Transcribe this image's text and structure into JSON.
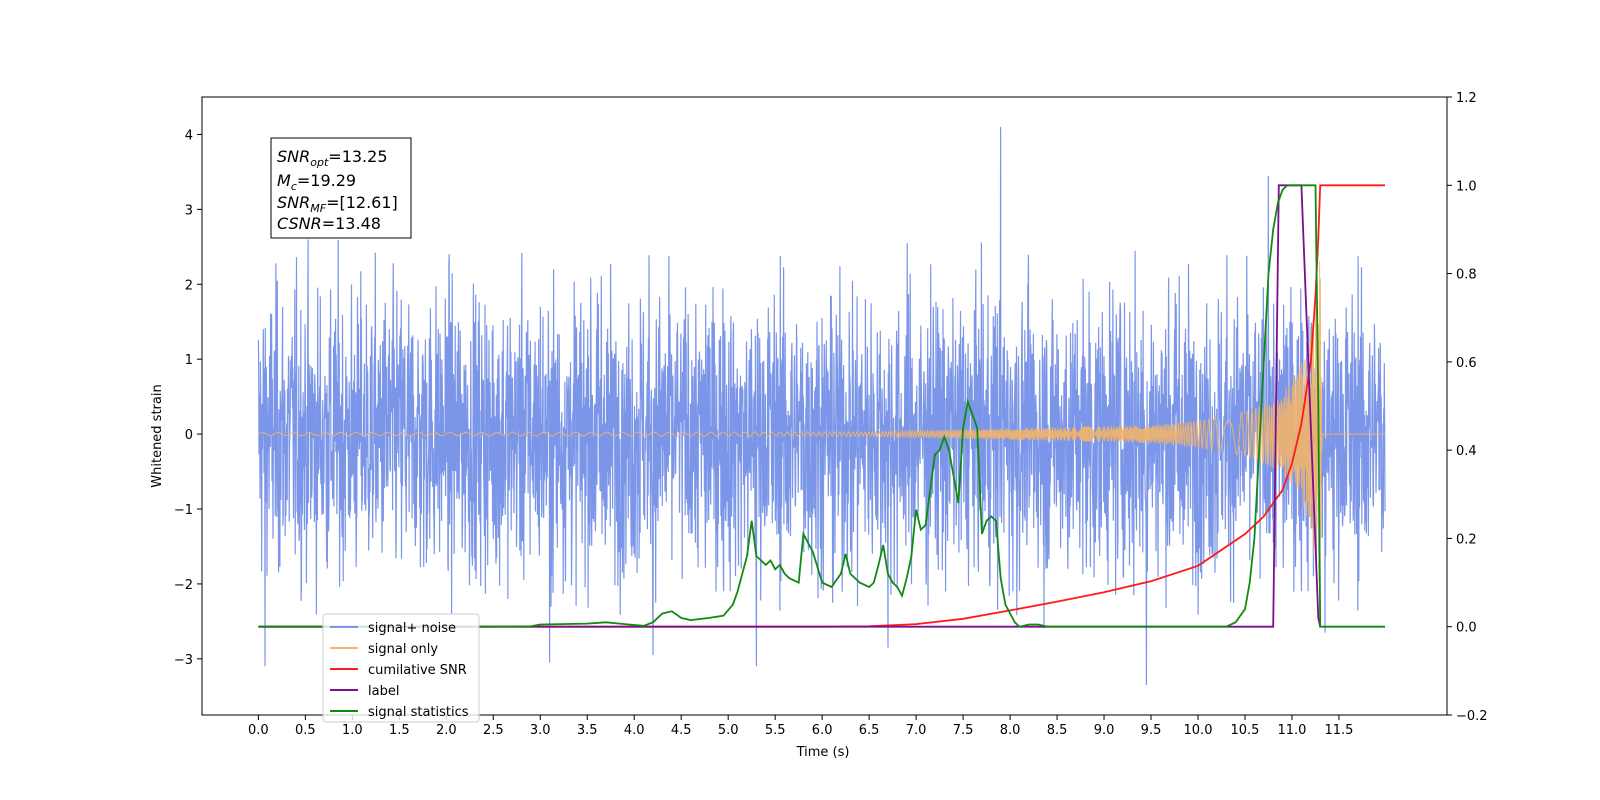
{
  "chart_data": {
    "type": "line",
    "xlabel": "Time (s)",
    "ylabel_left": "Whitened strain",
    "ylabel_right": "",
    "xlim": [
      -0.6,
      12.65
    ],
    "ylim_left": [
      -3.75,
      4.5
    ],
    "ylim_right": [
      -0.2,
      1.2
    ],
    "x_ticks": [
      "0.0",
      "0.5",
      "1.0",
      "1.5",
      "2.0",
      "2.5",
      "3.0",
      "3.5",
      "4.0",
      "4.5",
      "5.0",
      "5.5",
      "6.0",
      "6.5",
      "7.0",
      "7.5",
      "8.0",
      "8.5",
      "9.0",
      "9.5",
      "10.0",
      "10.5",
      "11.0",
      "11.5"
    ],
    "x_tick_values": [
      0,
      0.5,
      1,
      1.5,
      2,
      2.5,
      3,
      3.5,
      4,
      4.5,
      5,
      5.5,
      6,
      6.5,
      7,
      7.5,
      8,
      8.5,
      9,
      9.5,
      10,
      10.5,
      11,
      11.5
    ],
    "y_left_ticks": [
      "−3",
      "−2",
      "−1",
      "0",
      "1",
      "2",
      "3",
      "4"
    ],
    "y_left_tick_values": [
      -3,
      -2,
      -1,
      0,
      1,
      2,
      3,
      4
    ],
    "y_right_ticks": [
      "−0.2",
      "0.0",
      "0.2",
      "0.4",
      "0.6",
      "0.8",
      "1.0",
      "1.2"
    ],
    "y_right_tick_values": [
      -0.2,
      0,
      0.2,
      0.4,
      0.6,
      0.8,
      1.0,
      1.2
    ],
    "grid": false,
    "legend_placement": "lower-left",
    "stats_box": {
      "snr_opt": {
        "symbol": "SNR",
        "sub": "opt",
        "value": "=13.25"
      },
      "mc": {
        "symbol": "M",
        "sub": "c",
        "value": "=19.29"
      },
      "snr_mf": {
        "symbol": "SNR",
        "sub": "MF",
        "value": "=[12.61]"
      },
      "csnr": {
        "symbol": "CSNR",
        "sub": "",
        "value": "=13.48"
      }
    },
    "series": [
      {
        "name": "signal+ noise",
        "axis": "left",
        "color": "#7b96e8",
        "description_values": "noise with std about 1, range -3.35 to 4.1",
        "x_range": [
          0,
          11.99
        ],
        "noise_sigma": 0.95,
        "spikes": [
          [
            0.07,
            -3.1
          ],
          [
            3.1,
            -3.05
          ],
          [
            4.2,
            -2.95
          ],
          [
            5.3,
            -3.1
          ],
          [
            9.45,
            -3.35
          ],
          [
            7.9,
            4.1
          ],
          [
            10.75,
            3.45
          ],
          [
            6.7,
            -2.85
          ],
          [
            11.35,
            -2.65
          ]
        ]
      },
      {
        "name": "signal only",
        "axis": "left",
        "color": "#f2b46a",
        "description_values": "chirp envelope growing toward merger at 11.3 s",
        "x_range": [
          0,
          11.99
        ],
        "envelope_points": [
          [
            0,
            0.02
          ],
          [
            6.5,
            0.03
          ],
          [
            7.5,
            0.06
          ],
          [
            8.5,
            0.09
          ],
          [
            9.5,
            0.12
          ],
          [
            10.0,
            0.18
          ],
          [
            10.5,
            0.3
          ],
          [
            10.8,
            0.45
          ],
          [
            11.0,
            0.7
          ],
          [
            11.15,
            1.1
          ],
          [
            11.25,
            1.8
          ],
          [
            11.3,
            2.5
          ],
          [
            11.32,
            0.0
          ],
          [
            11.99,
            0.0
          ]
        ]
      },
      {
        "name": "cumilative SNR",
        "axis": "right",
        "color": "#ff1a1a",
        "x": [
          0,
          6.0,
          6.5,
          7.0,
          7.5,
          8.0,
          8.5,
          9.0,
          9.5,
          10.0,
          10.5,
          10.7,
          10.9,
          11.0,
          11.1,
          11.2,
          11.25,
          11.28,
          11.3,
          11.99
        ],
        "y": [
          0,
          0.0,
          0.001,
          0.006,
          0.018,
          0.037,
          0.057,
          0.078,
          0.103,
          0.138,
          0.21,
          0.25,
          0.31,
          0.37,
          0.46,
          0.6,
          0.75,
          0.88,
          1.0,
          1.0
        ]
      },
      {
        "name": "label",
        "axis": "right",
        "color": "#7a0f8a",
        "x": [
          0,
          10.8,
          10.86,
          11.1,
          11.28,
          11.3
        ],
        "y": [
          0,
          0,
          1.0,
          1.0,
          0.02,
          0
        ]
      },
      {
        "name": "signal statistics",
        "axis": "right",
        "color": "#118a11",
        "x": [
          0,
          2.5,
          2.9,
          3.0,
          3.5,
          3.7,
          3.9,
          4.1,
          4.2,
          4.3,
          4.4,
          4.5,
          4.6,
          4.8,
          4.95,
          5.05,
          5.1,
          5.2,
          5.25,
          5.3,
          5.4,
          5.45,
          5.5,
          5.55,
          5.6,
          5.65,
          5.7,
          5.75,
          5.8,
          5.9,
          6.0,
          6.1,
          6.2,
          6.25,
          6.3,
          6.4,
          6.5,
          6.55,
          6.6,
          6.65,
          6.7,
          6.75,
          6.8,
          6.85,
          6.9,
          6.95,
          7.0,
          7.05,
          7.1,
          7.15,
          7.2,
          7.25,
          7.3,
          7.35,
          7.4,
          7.45,
          7.5,
          7.55,
          7.6,
          7.65,
          7.7,
          7.75,
          7.8,
          7.85,
          7.9,
          7.95,
          8.0,
          8.05,
          8.1,
          8.2,
          8.3,
          8.4,
          8.5,
          10.3,
          10.4,
          10.5,
          10.55,
          10.6,
          10.65,
          10.7,
          10.75,
          10.8,
          10.85,
          10.9,
          10.95,
          11.0,
          11.1,
          11.2,
          11.25,
          11.28,
          11.3,
          11.5,
          11.99
        ],
        "y": [
          0,
          0,
          0.001,
          0.005,
          0.007,
          0.01,
          0.006,
          0.002,
          0.01,
          0.03,
          0.035,
          0.02,
          0.015,
          0.02,
          0.025,
          0.05,
          0.08,
          0.16,
          0.24,
          0.16,
          0.14,
          0.15,
          0.13,
          0.14,
          0.12,
          0.11,
          0.105,
          0.1,
          0.21,
          0.17,
          0.1,
          0.09,
          0.12,
          0.165,
          0.12,
          0.1,
          0.09,
          0.1,
          0.14,
          0.185,
          0.12,
          0.1,
          0.09,
          0.07,
          0.11,
          0.16,
          0.265,
          0.22,
          0.23,
          0.31,
          0.39,
          0.4,
          0.43,
          0.4,
          0.34,
          0.28,
          0.45,
          0.51,
          0.48,
          0.45,
          0.21,
          0.24,
          0.25,
          0.24,
          0.11,
          0.05,
          0.03,
          0.01,
          0.0,
          0.005,
          0.005,
          0.0,
          0.0,
          0.0,
          0.01,
          0.04,
          0.1,
          0.2,
          0.4,
          0.6,
          0.8,
          0.9,
          0.96,
          0.99,
          1.0,
          1.0,
          1.0,
          1.0,
          1.0,
          0.5,
          0.0,
          0.0,
          0.0
        ]
      }
    ]
  }
}
